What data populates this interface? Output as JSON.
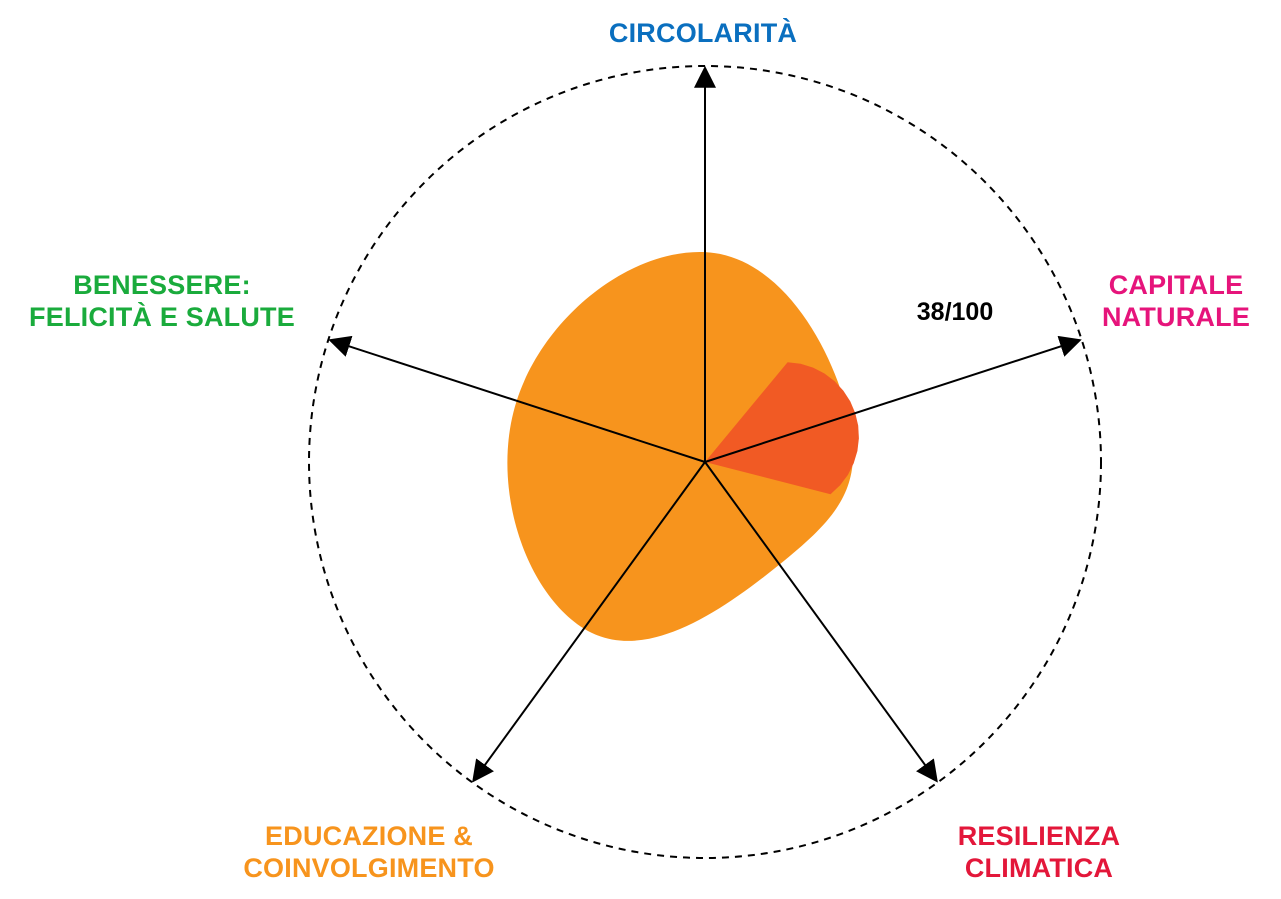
{
  "chart_data": {
    "type": "radar",
    "max": 100,
    "grid": false,
    "legend": "none",
    "axes": [
      {
        "key": "circolarita",
        "label_lines": [
          "CIRCOLARITÀ"
        ],
        "color": "#0a6fbf",
        "value": 53
      },
      {
        "key": "capitale",
        "label_lines": [
          "CAPITALE",
          "NATURALE"
        ],
        "color": "#e6147b",
        "value": 38
      },
      {
        "key": "resilienza",
        "label_lines": [
          "RESILIENZA",
          "CLIMATICA"
        ],
        "color": "#e3173a",
        "value": 32
      },
      {
        "key": "educazione",
        "label_lines": [
          "EDUCAZIONE &",
          "COINVOLGIMENTO"
        ],
        "color": "#f7941d",
        "value": 52
      },
      {
        "key": "benessere",
        "label_lines": [
          "BENESSERE:",
          "FELICITÀ E SALUTE"
        ],
        "color": "#1aab3c",
        "value": 50
      }
    ],
    "highlight": {
      "axis": "capitale",
      "label": "38/100",
      "color": "#f15a24"
    },
    "fill_color": "#f7941d"
  }
}
